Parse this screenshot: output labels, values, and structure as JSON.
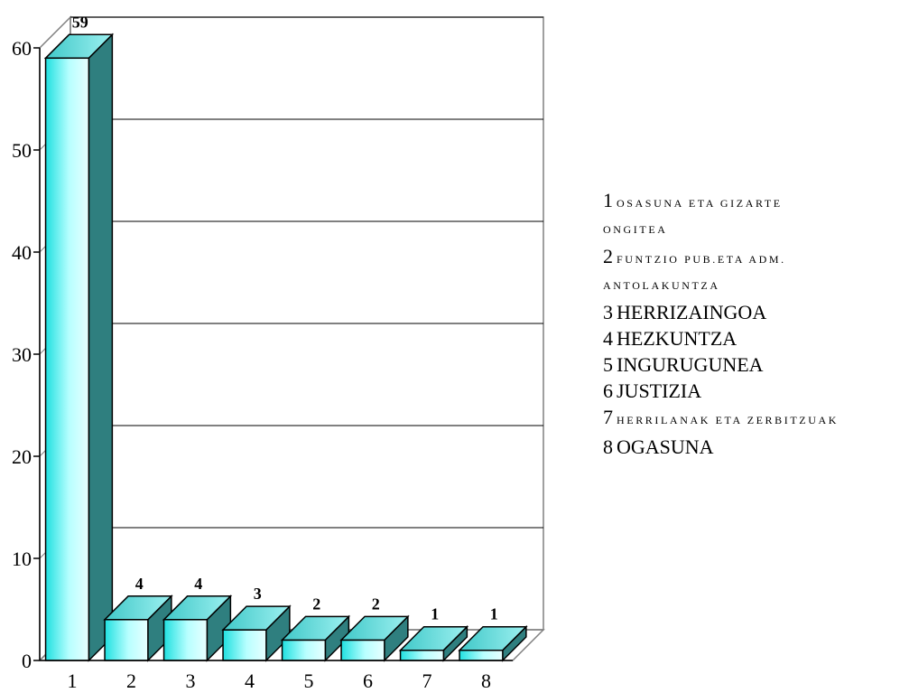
{
  "chart_data": {
    "type": "bar",
    "title": "",
    "xlabel": "",
    "ylabel": "",
    "categories": [
      "1",
      "2",
      "3",
      "4",
      "5",
      "6",
      "7",
      "8"
    ],
    "values": [
      59,
      4,
      4,
      3,
      2,
      2,
      1,
      1
    ],
    "data_labels": [
      "59",
      "4",
      "4",
      "3",
      "2",
      "2",
      "1",
      "1"
    ],
    "ylim": [
      0,
      60
    ],
    "yticks": [
      "0",
      "10",
      "20",
      "30",
      "40",
      "50",
      "60"
    ],
    "grid": true,
    "three_d": true,
    "bar_color": "#33e6e6",
    "bar_side_color": "#2f7f7f",
    "legend_position": "right",
    "legend": [
      {
        "num": "1",
        "text": "OSASUNA ETA GIZARTE",
        "text2": "ONGITEA",
        "small": true
      },
      {
        "num": "2",
        "text": "FUNTZIO PUB.ETA ADM.",
        "text2": "ANTOLAKUNTZA",
        "small": true
      },
      {
        "num": "3",
        "text": "HERRIZAINGOA",
        "small": false
      },
      {
        "num": "4",
        "text": "HEZKUNTZA",
        "small": false
      },
      {
        "num": "5",
        "text": "INGURUGUNEA",
        "small": false
      },
      {
        "num": "6",
        "text": "JUSTIZIA",
        "small": false
      },
      {
        "num": "7",
        "text": "HERRILANAK ETA ZERBITZUAK",
        "small": true
      },
      {
        "num": "8",
        "text": "OGASUNA",
        "small": false
      }
    ]
  }
}
